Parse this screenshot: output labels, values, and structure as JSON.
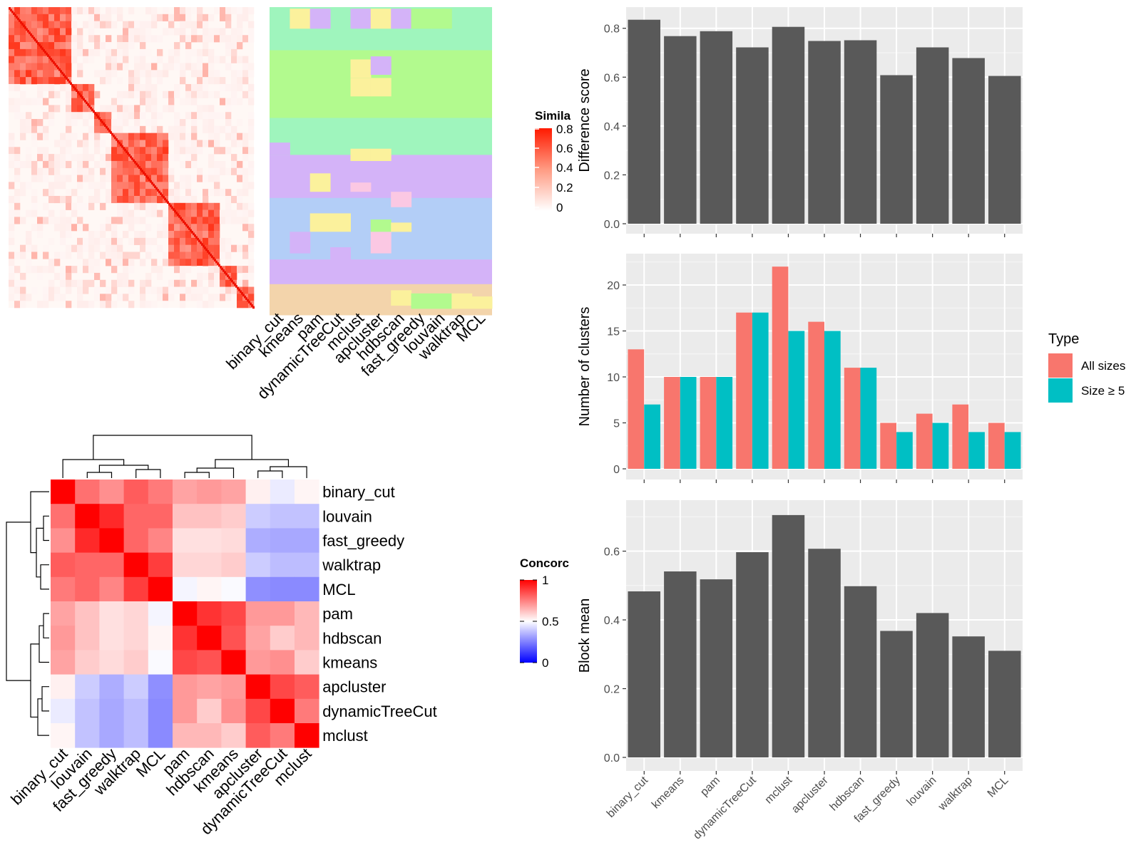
{
  "methods": [
    "binary_cut",
    "kmeans",
    "pam",
    "dynamicTreeCut",
    "mclust",
    "apcluster",
    "hdbscan",
    "fast_greedy",
    "louvain",
    "walktrap",
    "MCL"
  ],
  "similarity_panel": {
    "legend_title": "Simila",
    "legend_ticks": [
      "0.8",
      "0.6",
      "0.4",
      "0.2",
      "0"
    ],
    "column_labels": [
      "binary_cut",
      "kmeans",
      "pam",
      "dynamicTreeCut",
      "mclust",
      "apcluster",
      "hdbscan",
      "fast_greedy",
      "louvain",
      "walktrap",
      "MCL"
    ]
  },
  "concordance_panel": {
    "legend_title": "Concorc",
    "legend_ticks": [
      "1",
      "0.5",
      "0"
    ],
    "legend_tick_values": [
      1,
      0.5,
      0
    ],
    "order": [
      "binary_cut",
      "louvain",
      "fast_greedy",
      "walktrap",
      "MCL",
      "pam",
      "hdbscan",
      "kmeans",
      "apcluster",
      "dynamicTreeCut",
      "mclust"
    ],
    "matrix": [
      [
        1.0,
        0.78,
        0.72,
        0.82,
        0.76,
        0.68,
        0.7,
        0.68,
        0.53,
        0.46,
        0.52
      ],
      [
        0.78,
        1.0,
        0.92,
        0.8,
        0.8,
        0.62,
        0.62,
        0.6,
        0.4,
        0.38,
        0.38
      ],
      [
        0.72,
        0.92,
        1.0,
        0.8,
        0.74,
        0.56,
        0.56,
        0.57,
        0.34,
        0.33,
        0.33
      ],
      [
        0.82,
        0.8,
        0.8,
        1.0,
        0.88,
        0.58,
        0.58,
        0.6,
        0.4,
        0.37,
        0.37
      ],
      [
        0.76,
        0.8,
        0.74,
        0.88,
        1.0,
        0.48,
        0.52,
        0.49,
        0.28,
        0.27,
        0.27
      ],
      [
        0.68,
        0.62,
        0.56,
        0.58,
        0.48,
        1.0,
        0.9,
        0.86,
        0.7,
        0.7,
        0.64
      ],
      [
        0.7,
        0.62,
        0.56,
        0.58,
        0.52,
        0.9,
        1.0,
        0.84,
        0.68,
        0.6,
        0.64
      ],
      [
        0.68,
        0.6,
        0.57,
        0.6,
        0.49,
        0.86,
        0.84,
        1.0,
        0.7,
        0.72,
        0.6
      ],
      [
        0.53,
        0.4,
        0.34,
        0.4,
        0.28,
        0.7,
        0.68,
        0.7,
        1.0,
        0.86,
        0.82
      ],
      [
        0.46,
        0.38,
        0.33,
        0.37,
        0.27,
        0.7,
        0.6,
        0.72,
        0.86,
        1.0,
        0.76
      ],
      [
        0.52,
        0.38,
        0.33,
        0.37,
        0.27,
        0.64,
        0.64,
        0.6,
        0.82,
        0.76,
        1.0
      ]
    ]
  },
  "chart_data": [
    {
      "type": "bar",
      "ylabel": "Difference score",
      "categories": [
        "binary_cut",
        "kmeans",
        "pam",
        "dynamicTreeCut",
        "mclust",
        "apcluster",
        "hdbscan",
        "fast_greedy",
        "louvain",
        "walktrap",
        "MCL"
      ],
      "values": [
        0.835,
        0.768,
        0.788,
        0.722,
        0.806,
        0.748,
        0.751,
        0.608,
        0.722,
        0.678,
        0.605
      ],
      "yticks": [
        "0.0",
        "0.2",
        "0.4",
        "0.6",
        "0.8"
      ],
      "ylim": [
        0,
        0.875
      ],
      "color": "#595959"
    },
    {
      "type": "bar",
      "ylabel": "Number of clusters",
      "categories": [
        "binary_cut",
        "kmeans",
        "pam",
        "dynamicTreeCut",
        "mclust",
        "apcluster",
        "hdbscan",
        "fast_greedy",
        "louvain",
        "walktrap",
        "MCL"
      ],
      "series": [
        {
          "name": "All sizes",
          "color": "#F8766D",
          "values": [
            13,
            10,
            10,
            17,
            22,
            16,
            11,
            5,
            6,
            7,
            5
          ]
        },
        {
          "name": "Size ≥ 5",
          "color": "#00BFC4",
          "values": [
            7,
            10,
            10,
            17,
            15,
            15,
            11,
            4,
            5,
            4,
            4
          ]
        }
      ],
      "yticks": [
        "0",
        "5",
        "10",
        "15",
        "20"
      ],
      "ylim": [
        0,
        23.1
      ],
      "legend_title": "Type",
      "legend_position": "right"
    },
    {
      "type": "bar",
      "ylabel": "Block mean",
      "categories": [
        "binary_cut",
        "kmeans",
        "pam",
        "dynamicTreeCut",
        "mclust",
        "apcluster",
        "hdbscan",
        "fast_greedy",
        "louvain",
        "walktrap",
        "MCL"
      ],
      "values": [
        0.483,
        0.541,
        0.518,
        0.597,
        0.705,
        0.607,
        0.498,
        0.368,
        0.42,
        0.352,
        0.31
      ],
      "yticks": [
        "0.0",
        "0.2",
        "0.4",
        "0.6"
      ],
      "ylim": [
        0,
        0.74
      ],
      "color": "#595959"
    }
  ]
}
